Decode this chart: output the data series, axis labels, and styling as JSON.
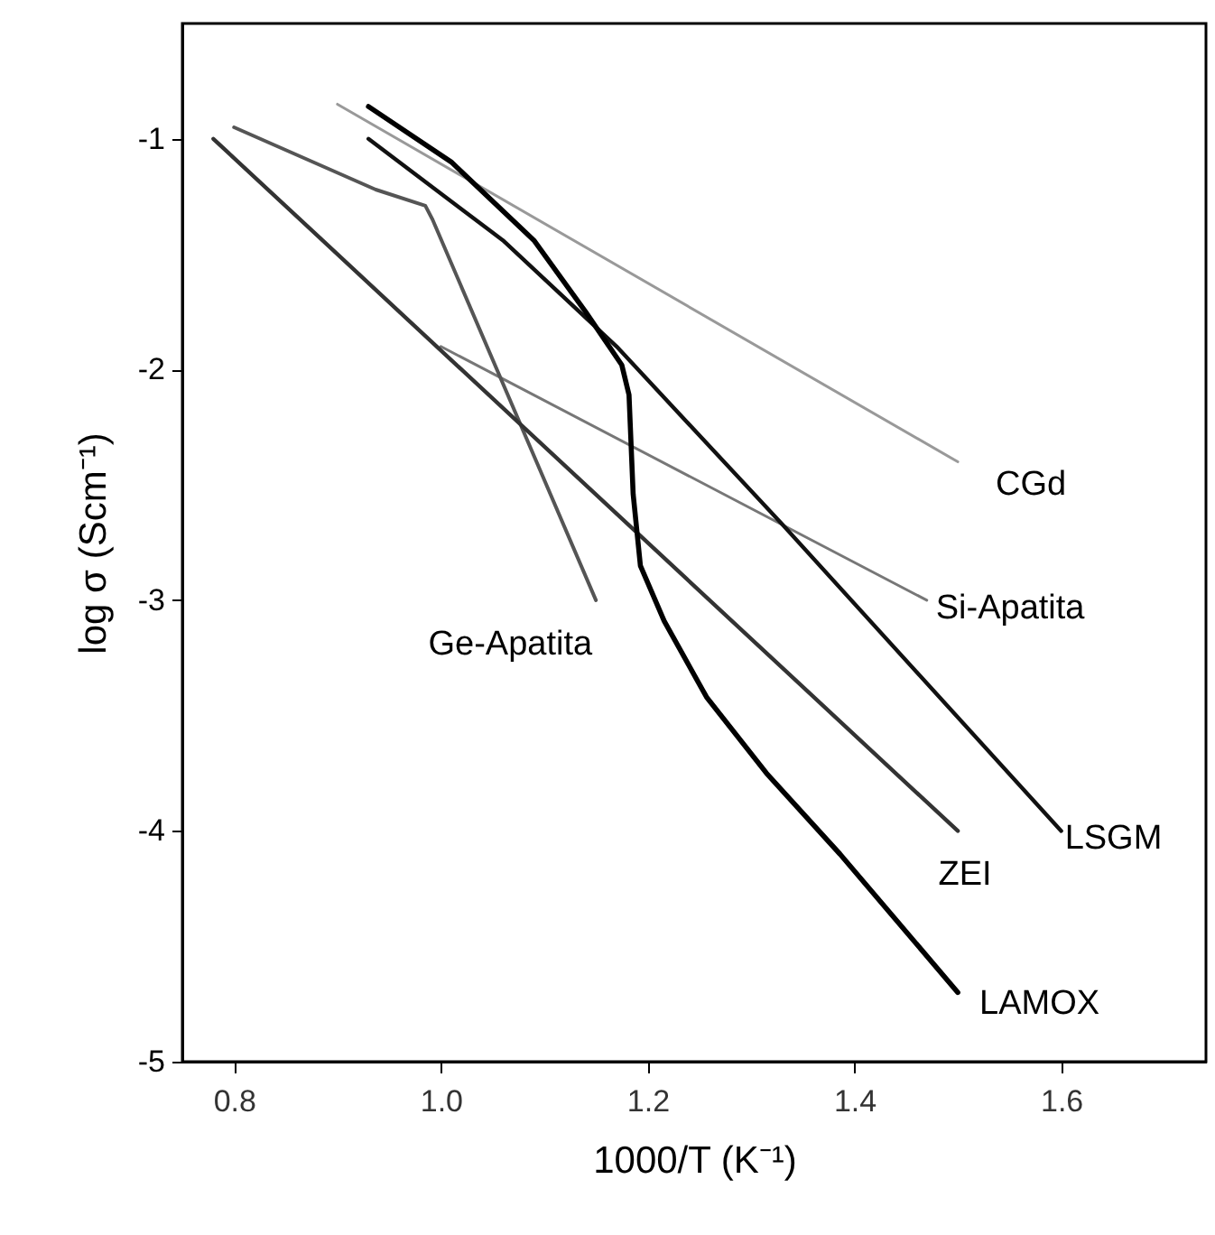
{
  "chart_data": {
    "type": "line",
    "xlabel": "1000/T (K⁻¹)",
    "ylabel": "log σ (Scm⁻¹)",
    "xlim": [
      0.75,
      1.74
    ],
    "ylim": [
      -5,
      -0.5
    ],
    "xticks": [
      0.8,
      {
        "value": 1,
        "label": "1.0"
      },
      1.2,
      1.4,
      1.6
    ],
    "yticks": [
      {
        "value": -5,
        "label": "-5"
      },
      {
        "value": -4,
        "label": "-4"
      },
      {
        "value": -3,
        "label": "-3"
      },
      {
        "value": -2,
        "label": "-2"
      },
      {
        "value": -1,
        "label": "-1"
      }
    ],
    "series": [
      {
        "name": "CGd",
        "color": "#999999",
        "x": [
          0.9,
          1.5
        ],
        "values": [
          -0.85,
          -2.4
        ]
      },
      {
        "name": "Si-Apatita",
        "color": "#777777",
        "x": [
          1.0,
          1.47
        ],
        "values": [
          -1.9,
          -3.0
        ]
      },
      {
        "name": "Ge-Apatita",
        "color": "#555555",
        "x": [
          0.8,
          0.937,
          0.985,
          0.992,
          1.15
        ],
        "values": [
          -0.95,
          -1.22,
          -1.29,
          -1.35,
          -3.0
        ]
      },
      {
        "name": "LSGM",
        "color": "#111111",
        "x": [
          0.93,
          1.06,
          1.17,
          1.33,
          1.6
        ],
        "values": [
          -1.0,
          -1.44,
          -1.9,
          -2.67,
          -4.0
        ]
      },
      {
        "name": "ZEI",
        "color": "#333333",
        "x": [
          0.78,
          1.5
        ],
        "values": [
          -1.0,
          -4.0
        ]
      },
      {
        "name": "LAMOX",
        "color": "#000000",
        "x": [
          0.93,
          1.01,
          1.09,
          1.14,
          1.175,
          1.182,
          1.186,
          1.193,
          1.216,
          1.257,
          1.315,
          1.386,
          1.5
        ],
        "values": [
          -0.86,
          -1.1,
          -1.44,
          -1.75,
          -1.98,
          -2.11,
          -2.54,
          -2.85,
          -3.09,
          -3.42,
          -3.75,
          -4.1,
          -4.7
        ]
      }
    ]
  }
}
